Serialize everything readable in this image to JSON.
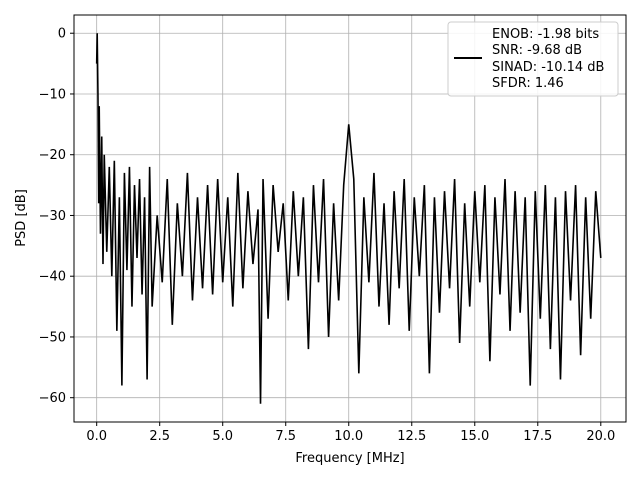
{
  "chart_data": {
    "type": "line",
    "title": "",
    "xlabel": "Frequency [MHz]",
    "ylabel": "PSD [dB]",
    "xlim": [
      -0.9,
      21.0
    ],
    "ylim": [
      -64,
      3
    ],
    "x_ticks": [
      0.0,
      2.5,
      5.0,
      7.5,
      10.0,
      12.5,
      15.0,
      17.5,
      20.0
    ],
    "x_tick_labels": [
      "0.0",
      "2.5",
      "5.0",
      "7.5",
      "10.0",
      "12.5",
      "15.0",
      "17.5",
      "20.0"
    ],
    "y_ticks": [
      0,
      -10,
      -20,
      -30,
      -40,
      -50,
      -60
    ],
    "y_tick_labels": [
      "0",
      "−10",
      "−20",
      "−30",
      "−40",
      "−50",
      "−60"
    ],
    "grid": true,
    "legend_position": "top-right",
    "legend": {
      "lines": [
        "ENOB: -1.98 bits",
        "SNR: -9.68 dB",
        "SINAD: -10.14 dB",
        "SFDR: 1.46"
      ]
    },
    "series_color": "#000000",
    "series": [
      {
        "x": [
          0.0,
          0.02,
          0.05,
          0.08,
          0.1,
          0.15,
          0.2,
          0.25,
          0.3,
          0.4,
          0.5,
          0.6,
          0.7,
          0.8,
          0.9,
          1.0,
          1.1,
          1.2,
          1.3,
          1.4,
          1.5,
          1.6,
          1.7,
          1.8,
          1.9,
          2.0,
          2.1,
          2.2,
          2.4,
          2.6,
          2.8,
          3.0,
          3.2,
          3.4,
          3.6,
          3.8,
          4.0,
          4.2,
          4.4,
          4.6,
          4.8,
          5.0,
          5.2,
          5.4,
          5.6,
          5.8,
          6.0,
          6.2,
          6.4,
          6.5,
          6.6,
          6.8,
          7.0,
          7.2,
          7.4,
          7.6,
          7.8,
          8.0,
          8.2,
          8.4,
          8.6,
          8.8,
          9.0,
          9.2,
          9.4,
          9.6,
          9.8,
          10.0,
          10.2,
          10.4,
          10.6,
          10.8,
          11.0,
          11.2,
          11.4,
          11.6,
          11.8,
          12.0,
          12.2,
          12.4,
          12.6,
          12.8,
          13.0,
          13.2,
          13.4,
          13.6,
          13.8,
          14.0,
          14.2,
          14.4,
          14.6,
          14.8,
          15.0,
          15.2,
          15.4,
          15.6,
          15.8,
          16.0,
          16.2,
          16.4,
          16.6,
          16.8,
          17.0,
          17.2,
          17.4,
          17.6,
          17.8,
          18.0,
          18.2,
          18.4,
          18.6,
          18.8,
          19.0,
          19.2,
          19.4,
          19.6,
          19.8,
          20.0
        ],
        "y": [
          -5,
          0,
          -10,
          -28,
          -12,
          -33,
          -17,
          -38,
          -20,
          -36,
          -22,
          -40,
          -21,
          -49,
          -27,
          -58,
          -23,
          -39,
          -22,
          -45,
          -25,
          -37,
          -24,
          -43,
          -27,
          -57,
          -22,
          -45,
          -30,
          -41,
          -24,
          -48,
          -28,
          -40,
          -23,
          -44,
          -27,
          -42,
          -25,
          -43,
          -24,
          -41,
          -27,
          -45,
          -23,
          -42,
          -26,
          -38,
          -29,
          -61,
          -24,
          -47,
          -25,
          -36,
          -28,
          -44,
          -26,
          -40,
          -27,
          -52,
          -25,
          -41,
          -24,
          -50,
          -28,
          -44,
          -25,
          -15,
          -24,
          -56,
          -27,
          -41,
          -23,
          -45,
          -28,
          -48,
          -26,
          -42,
          -24,
          -49,
          -27,
          -40,
          -25,
          -56,
          -27,
          -46,
          -26,
          -42,
          -24,
          -51,
          -28,
          -45,
          -26,
          -41,
          -25,
          -54,
          -27,
          -43,
          -24,
          -49,
          -26,
          -46,
          -27,
          -58,
          -26,
          -47,
          -25,
          -52,
          -27,
          -57,
          -26,
          -44,
          -25,
          -53,
          -27,
          -47,
          -26,
          -37
        ]
      }
    ]
  }
}
